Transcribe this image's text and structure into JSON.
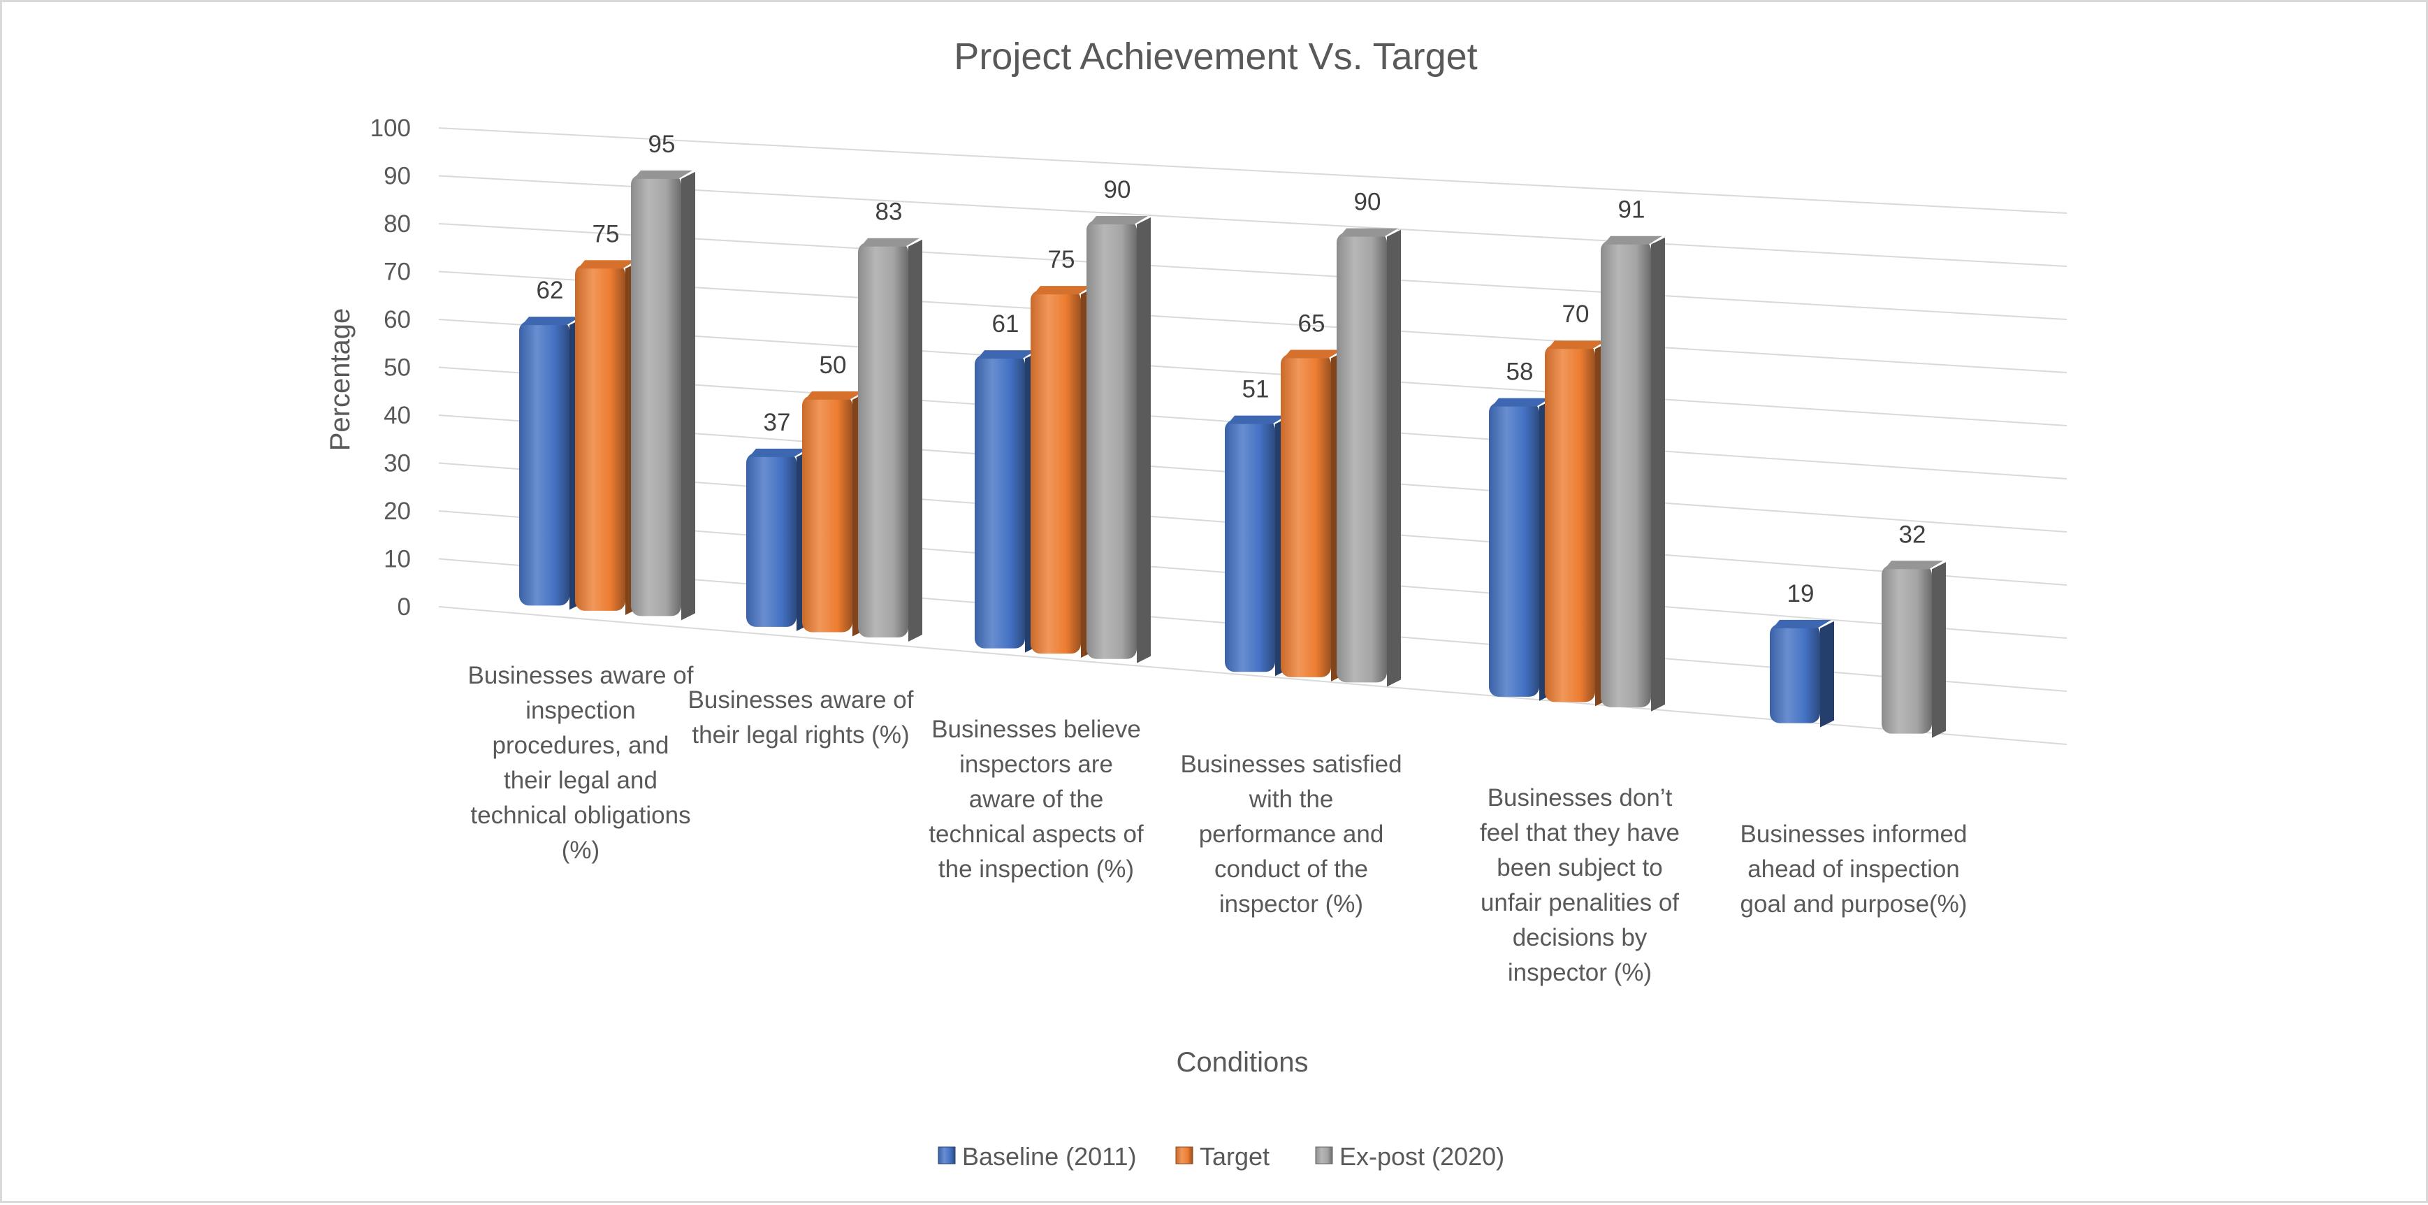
{
  "chart_data": {
    "type": "bar",
    "title": "Project Achievement Vs. Target",
    "xlabel": "Conditions",
    "ylabel": "Percentage",
    "ylim": [
      0,
      100
    ],
    "yticks": [
      0,
      10,
      20,
      30,
      40,
      50,
      60,
      70,
      80,
      90,
      100
    ],
    "categories": [
      "Businesses aware of inspection procedures, and their legal and technical obligations (%)",
      "Businesses aware of their legal rights (%)",
      "Businesses believe inspectors are aware of the technical aspects of the inspection (%)",
      "Businesses satisfied with the performance and conduct of the inspector (%)",
      "Businesses don’t feel that they have been subject to unfair penalities of decisions by inspector (%)",
      "Businesses informed ahead of inspection goal and purpose(%)"
    ],
    "category_lines": [
      [
        "Businesses aware of",
        "inspection",
        "procedures, and",
        "their legal and",
        "technical obligations",
        "(%)"
      ],
      [
        "Businesses aware of",
        "their legal rights (%)"
      ],
      [
        "Businesses believe",
        "inspectors are",
        "aware of the",
        "technical aspects of",
        "the inspection (%)"
      ],
      [
        "Businesses satisfied",
        "with the",
        "performance and",
        "conduct of the",
        "inspector (%)"
      ],
      [
        "Businesses don’t",
        "feel that they have",
        "been subject to",
        "unfair penalities of",
        "decisions by",
        "inspector (%)"
      ],
      [
        "Businesses informed",
        "ahead of inspection",
        "goal and purpose(%)"
      ]
    ],
    "series": [
      {
        "name": "Baseline (2011)",
        "color": "#4472C4",
        "values": [
          62,
          37,
          61,
          51,
          58,
          19
        ]
      },
      {
        "name": "Target",
        "color": "#ED7D31",
        "values": [
          75,
          50,
          75,
          65,
          70,
          null
        ]
      },
      {
        "name": "Ex-post (2020)",
        "color": "#A5A5A5",
        "values": [
          95,
          83,
          90,
          90,
          91,
          32
        ]
      }
    ],
    "grid": true,
    "legend": "bottom",
    "style": "3d-clustered-column"
  }
}
